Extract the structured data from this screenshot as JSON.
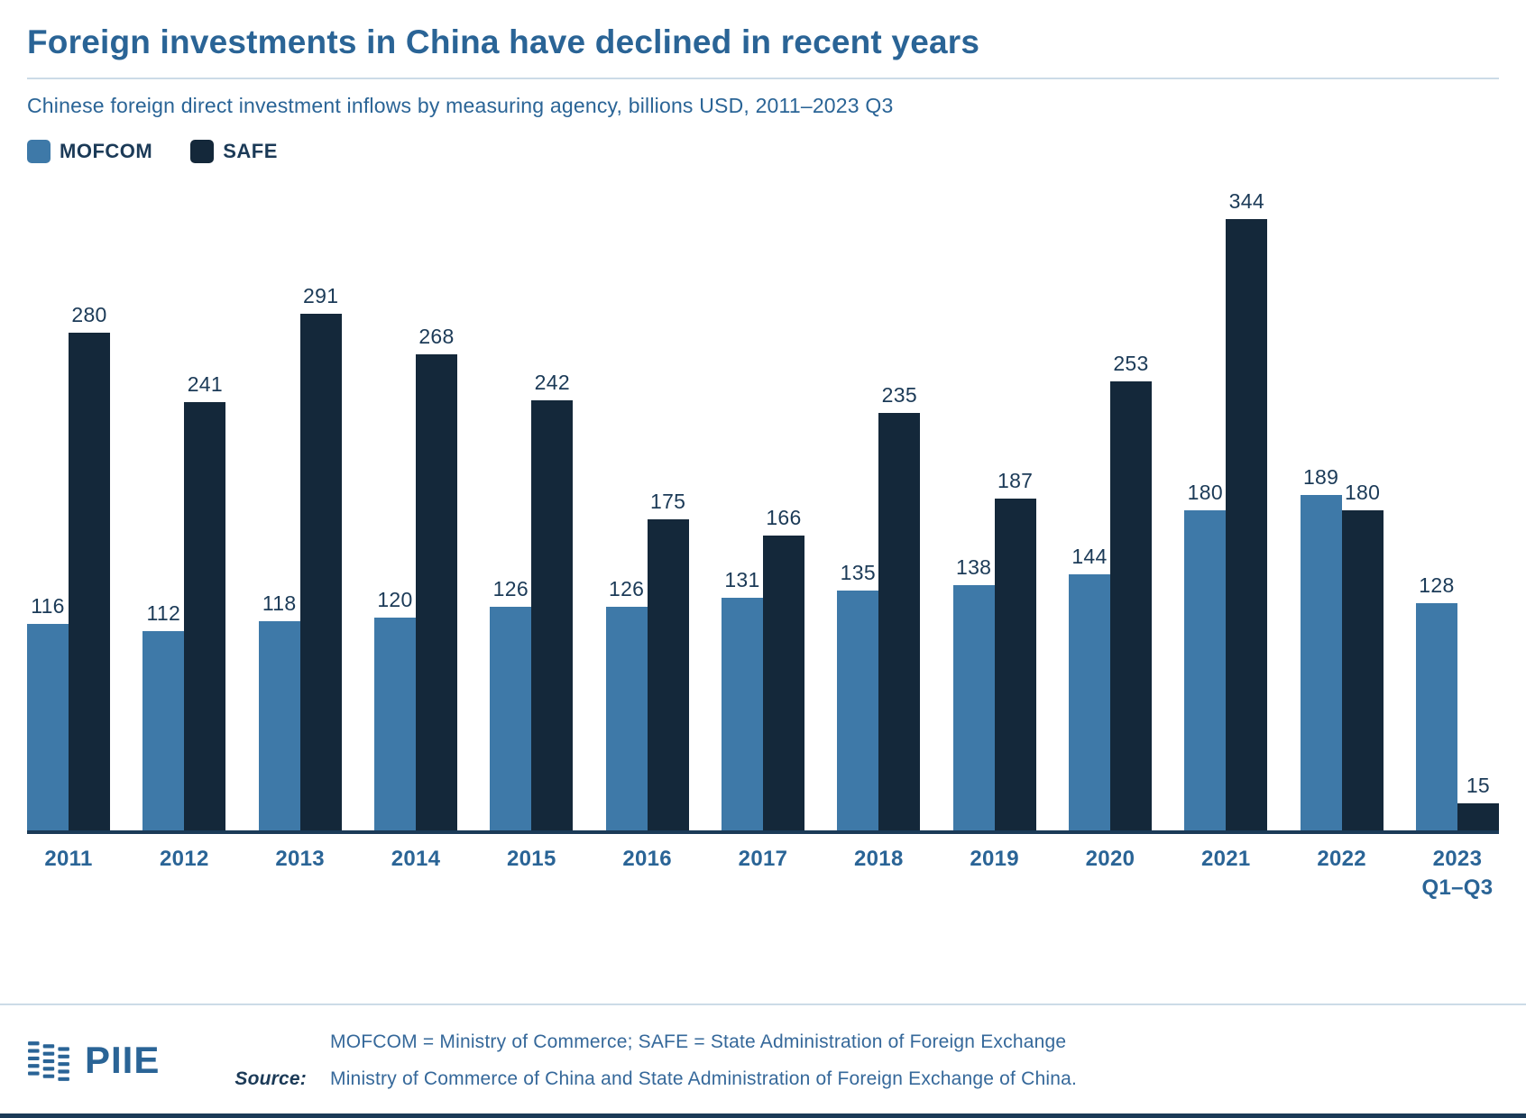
{
  "header": {
    "title": "Foreign investments in China have declined in recent years",
    "subtitle": "Chinese foreign direct investment inflows by measuring agency, billions USD, 2011–2023 Q3"
  },
  "legend": [
    {
      "label": "MOFCOM",
      "color": "#3e79a8"
    },
    {
      "label": "SAFE",
      "color": "#14283a"
    }
  ],
  "chart_data": {
    "type": "bar",
    "title": "Foreign investments in China have declined in recent years",
    "subtitle": "Chinese foreign direct investment inflows by measuring agency, billions USD, 2011–2023 Q3",
    "categories": [
      "2011",
      "2012",
      "2013",
      "2014",
      "2015",
      "2016",
      "2017",
      "2018",
      "2019",
      "2020",
      "2021",
      "2022",
      "2023\nQ1–Q3"
    ],
    "series": [
      {
        "name": "MOFCOM",
        "color": "#3e79a8",
        "values": [
          116,
          112,
          118,
          120,
          126,
          126,
          131,
          135,
          138,
          144,
          180,
          189,
          128
        ]
      },
      {
        "name": "SAFE",
        "color": "#14283a",
        "values": [
          280,
          241,
          291,
          268,
          242,
          175,
          166,
          235,
          187,
          253,
          344,
          180,
          15
        ]
      }
    ],
    "xlabel": "",
    "ylabel": "Billions USD",
    "ylim": [
      0,
      350
    ],
    "grid": false,
    "value_labels": true,
    "legend_position": "top-left"
  },
  "footer": {
    "logo_text": "PIIE",
    "note": "MOFCOM = Ministry of Commerce; SAFE = State Administration of Foreign Exchange",
    "source_label": "Source:",
    "source_text": "Ministry of Commerce of China and State Administration of Foreign Exchange of China."
  },
  "colors": {
    "accent_blue": "#2a6496",
    "dark_navy": "#1b3a57",
    "mofcom_bar": "#3e79a8",
    "safe_bar": "#14283a",
    "rule_light": "#ccdbe7"
  }
}
